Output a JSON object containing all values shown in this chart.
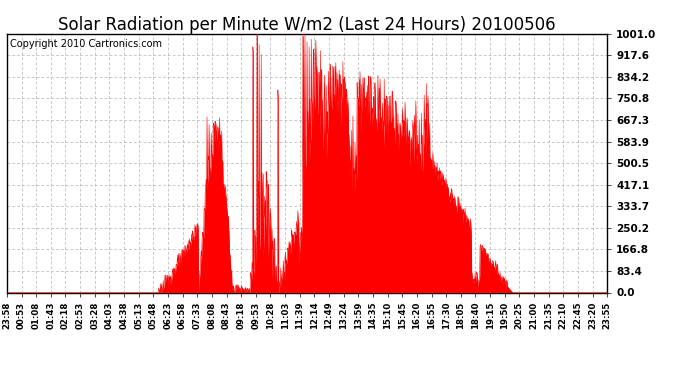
{
  "title": "Solar Radiation per Minute W/m2 (Last 24 Hours) 20100506",
  "copyright": "Copyright 2010 Cartronics.com",
  "y_ticks": [
    0.0,
    83.4,
    166.8,
    250.2,
    333.7,
    417.1,
    500.5,
    583.9,
    667.3,
    750.8,
    834.2,
    917.6,
    1001.0
  ],
  "y_max": 1001.0,
  "y_min": 0.0,
  "fill_color": "#ff0000",
  "line_color": "#ff0000",
  "background_color": "#ffffff",
  "grid_color": "#b0b0b0",
  "dashed_line_color": "#ff0000",
  "title_fontsize": 12,
  "copyright_fontsize": 7,
  "tick_labels": [
    "23:58",
    "00:53",
    "01:08",
    "01:43",
    "02:18",
    "02:53",
    "03:28",
    "04:03",
    "04:38",
    "05:13",
    "05:48",
    "06:23",
    "06:58",
    "07:33",
    "08:08",
    "08:43",
    "09:18",
    "09:53",
    "10:28",
    "11:03",
    "11:39",
    "12:14",
    "12:49",
    "13:24",
    "13:59",
    "14:35",
    "15:10",
    "15:45",
    "16:20",
    "16:55",
    "17:30",
    "18:05",
    "18:40",
    "19:15",
    "19:50",
    "20:25",
    "21:00",
    "21:35",
    "22:10",
    "22:45",
    "23:20",
    "23:55"
  ]
}
